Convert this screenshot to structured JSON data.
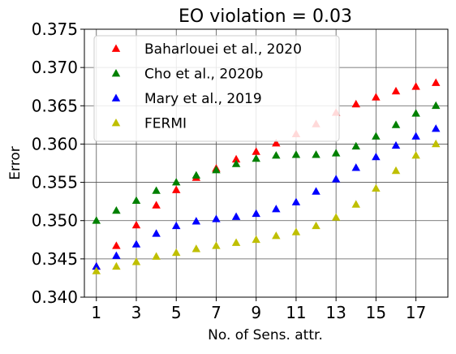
{
  "chart_data": {
    "type": "scatter",
    "title": "EO violation = 0.03",
    "xlabel": "No. of Sens. attr.",
    "ylabel": "Error",
    "xlim": [
      0.4,
      18.6
    ],
    "ylim": [
      0.34,
      0.375
    ],
    "xticks": [
      1,
      3,
      5,
      7,
      9,
      11,
      13,
      15,
      17
    ],
    "xtick_labels": [
      "1",
      "3",
      "5",
      "7",
      "9",
      "11",
      "13",
      "15",
      "17"
    ],
    "yticks": [
      0.34,
      0.345,
      0.35,
      0.355,
      0.36,
      0.365,
      0.37,
      0.375
    ],
    "ytick_labels": [
      "0.340",
      "0.345",
      "0.350",
      "0.355",
      "0.360",
      "0.365",
      "0.370",
      "0.375"
    ],
    "grid": true,
    "legend_position": "upper-left",
    "marker": "triangle",
    "x": [
      1,
      2,
      3,
      4,
      5,
      6,
      7,
      8,
      9,
      10,
      11,
      12,
      13,
      14,
      15,
      16,
      17,
      18
    ],
    "series": [
      {
        "name": "Baharlouei et al., 2020",
        "color": "#ff0000",
        "values": [
          0.344,
          0.3467,
          0.3494,
          0.352,
          0.354,
          0.3556,
          0.3568,
          0.358,
          0.359,
          0.3601,
          0.3613,
          0.3626,
          0.3641,
          0.3652,
          0.3661,
          0.3669,
          0.3675,
          0.368
        ]
      },
      {
        "name": "Cho et al., 2020b",
        "color": "#008000",
        "values": [
          0.35,
          0.3513,
          0.3526,
          0.3539,
          0.355,
          0.3559,
          0.3566,
          0.3574,
          0.3581,
          0.3585,
          0.3586,
          0.3586,
          0.3588,
          0.3597,
          0.361,
          0.3625,
          0.364,
          0.365
        ]
      },
      {
        "name": "Mary et al., 2019",
        "color": "#0000ff",
        "values": [
          0.344,
          0.3454,
          0.3469,
          0.3483,
          0.3493,
          0.3499,
          0.3502,
          0.3505,
          0.3509,
          0.3515,
          0.3524,
          0.3538,
          0.3554,
          0.3569,
          0.3583,
          0.3598,
          0.361,
          0.362
        ]
      },
      {
        "name": "FERMI",
        "color": "#bfbf00",
        "values": [
          0.3434,
          0.344,
          0.3446,
          0.3453,
          0.3458,
          0.3463,
          0.3467,
          0.3471,
          0.3475,
          0.348,
          0.3485,
          0.3493,
          0.3504,
          0.3521,
          0.3542,
          0.3565,
          0.3585,
          0.36
        ]
      }
    ]
  }
}
